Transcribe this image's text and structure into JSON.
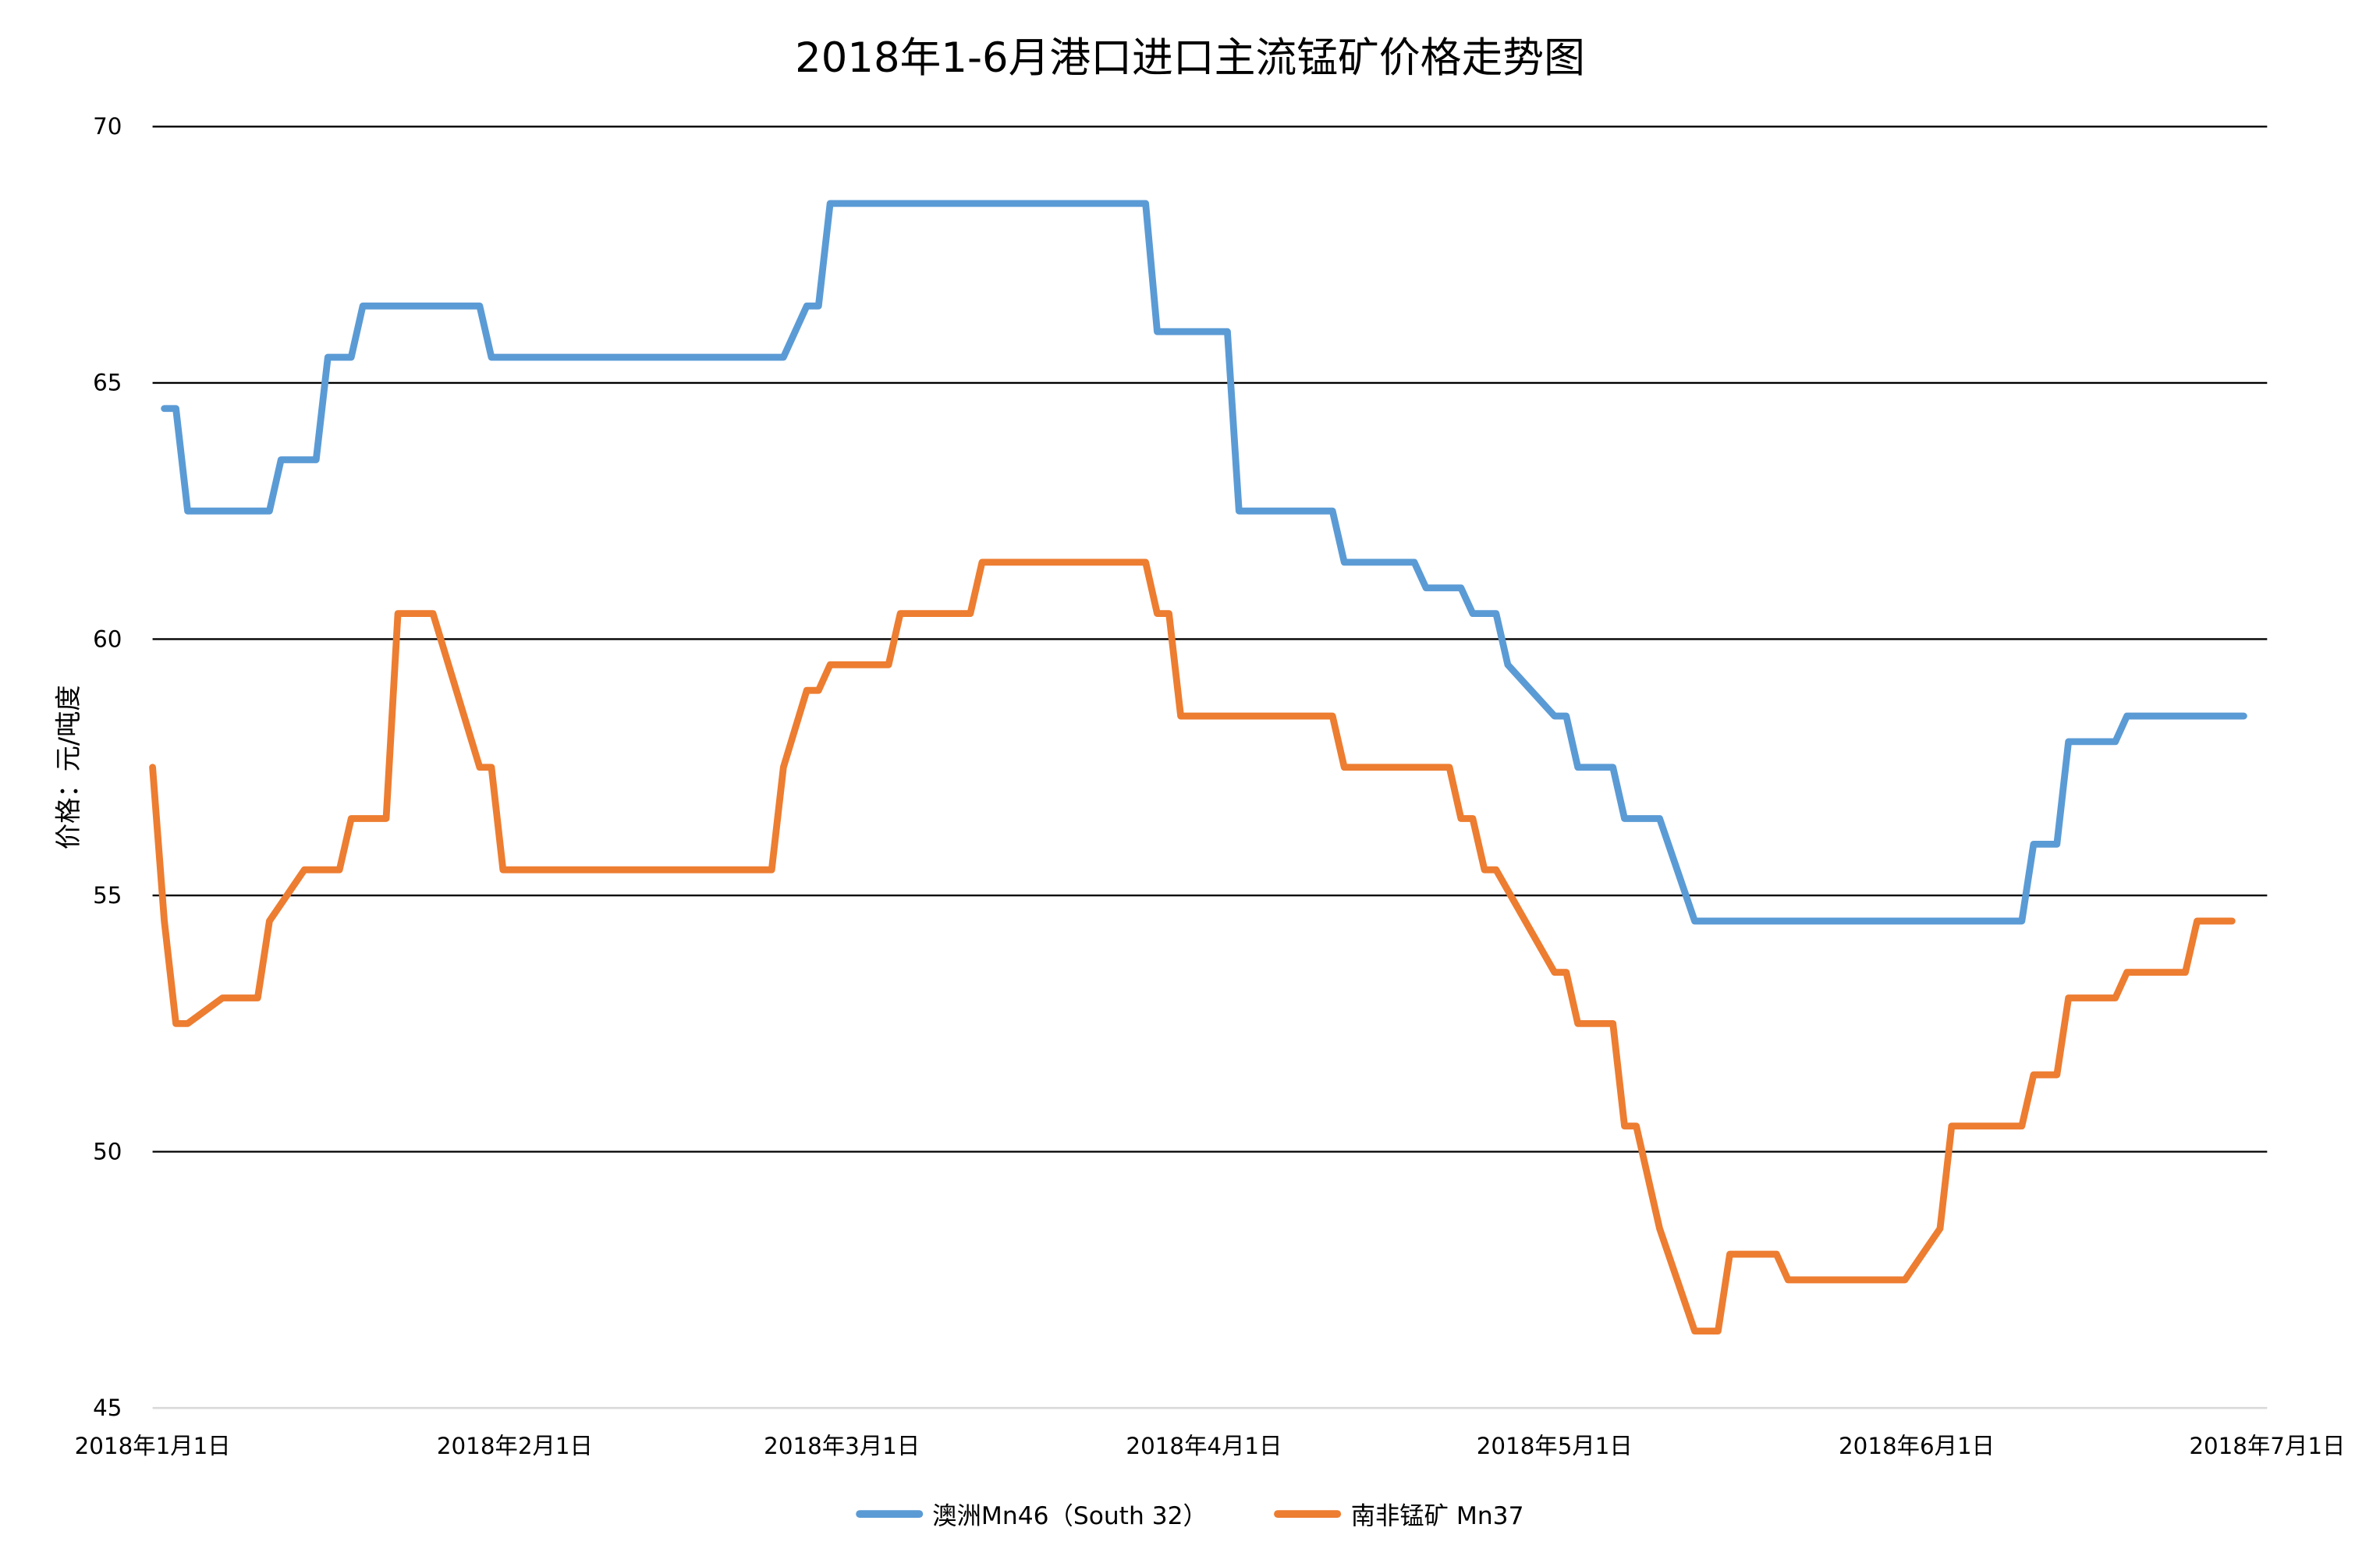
{
  "chart_data": {
    "type": "line",
    "title": "2018年1-6月港口进口主流锰矿价格走势图",
    "xlabel": "",
    "ylabel": "价格：元/吨度",
    "ylim": [
      45,
      70
    ],
    "yticks": [
      45,
      50,
      55,
      60,
      65,
      70
    ],
    "xticks": [
      "2018年1月1日",
      "2018年2月1日",
      "2018年3月1日",
      "2018年4月1日",
      "2018年5月1日",
      "2018年6月1日",
      "2018年7月1日"
    ],
    "xtick_days": [
      0,
      31,
      59,
      90,
      120,
      151,
      181
    ],
    "grid": true,
    "legend_position": "bottom",
    "series": [
      {
        "name": "澳洲Mn46（South 32）",
        "color": "#5B9BD5",
        "points_day_value": [
          [
            1,
            64.5
          ],
          [
            2,
            64.5
          ],
          [
            3,
            62.5
          ],
          [
            10,
            62.5
          ],
          [
            11,
            63.5
          ],
          [
            14,
            63.5
          ],
          [
            15,
            65.5
          ],
          [
            17,
            65.5
          ],
          [
            18,
            66.5
          ],
          [
            28,
            66.5
          ],
          [
            29,
            65.5
          ],
          [
            54,
            65.5
          ],
          [
            56,
            66.5
          ],
          [
            57,
            66.5
          ],
          [
            58,
            68.5
          ],
          [
            85,
            68.5
          ],
          [
            86,
            66.0
          ],
          [
            92,
            66.0
          ],
          [
            93,
            62.5
          ],
          [
            101,
            62.5
          ],
          [
            102,
            61.5
          ],
          [
            108,
            61.5
          ],
          [
            109,
            61.0
          ],
          [
            112,
            61.0
          ],
          [
            113,
            60.5
          ],
          [
            115,
            60.5
          ],
          [
            116,
            59.5
          ],
          [
            120,
            58.5
          ],
          [
            121,
            58.5
          ],
          [
            122,
            57.5
          ],
          [
            125,
            57.5
          ],
          [
            126,
            56.5
          ],
          [
            129,
            56.5
          ],
          [
            132,
            54.5
          ],
          [
            160,
            54.5
          ],
          [
            161,
            56.0
          ],
          [
            163,
            56.0
          ],
          [
            164,
            58.0
          ],
          [
            168,
            58.0
          ],
          [
            169,
            58.5
          ],
          [
            179,
            58.5
          ]
        ]
      },
      {
        "name": "南非锰矿 Mn37",
        "color": "#ED7D31",
        "points_day_value": [
          [
            0,
            57.5
          ],
          [
            1,
            54.5
          ],
          [
            2,
            52.5
          ],
          [
            3,
            52.5
          ],
          [
            6,
            53.0
          ],
          [
            9,
            53.0
          ],
          [
            10,
            54.5
          ],
          [
            13,
            55.5
          ],
          [
            16,
            55.5
          ],
          [
            17,
            56.5
          ],
          [
            20,
            56.5
          ],
          [
            21,
            60.5
          ],
          [
            24,
            60.5
          ],
          [
            28,
            57.5
          ],
          [
            29,
            57.5
          ],
          [
            30,
            55.5
          ],
          [
            53,
            55.5
          ],
          [
            54,
            57.5
          ],
          [
            56,
            59.0
          ],
          [
            57,
            59.0
          ],
          [
            58,
            59.5
          ],
          [
            63,
            59.5
          ],
          [
            64,
            60.5
          ],
          [
            70,
            60.5
          ],
          [
            71,
            61.5
          ],
          [
            85,
            61.5
          ],
          [
            86,
            60.5
          ],
          [
            87,
            60.5
          ],
          [
            88,
            58.5
          ],
          [
            101,
            58.5
          ],
          [
            102,
            57.5
          ],
          [
            111,
            57.5
          ],
          [
            112,
            56.5
          ],
          [
            113,
            56.5
          ],
          [
            114,
            55.5
          ],
          [
            115,
            55.5
          ],
          [
            120,
            53.5
          ],
          [
            121,
            53.5
          ],
          [
            122,
            52.5
          ],
          [
            125,
            52.5
          ],
          [
            126,
            50.5
          ],
          [
            127,
            50.5
          ],
          [
            129,
            48.5
          ],
          [
            132,
            46.5
          ],
          [
            134,
            46.5
          ],
          [
            135,
            48.0
          ],
          [
            139,
            48.0
          ],
          [
            140,
            47.5
          ],
          [
            150,
            47.5
          ],
          [
            153,
            48.5
          ],
          [
            154,
            50.5
          ],
          [
            160,
            50.5
          ],
          [
            161,
            51.5
          ],
          [
            163,
            51.5
          ],
          [
            164,
            53.0
          ],
          [
            168,
            53.0
          ],
          [
            169,
            53.5
          ],
          [
            174,
            53.5
          ],
          [
            175,
            54.5
          ],
          [
            178,
            54.5
          ]
        ]
      }
    ]
  }
}
